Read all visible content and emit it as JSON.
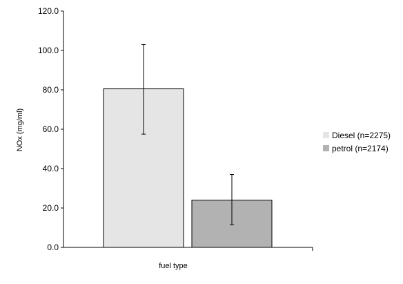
{
  "chart_data": {
    "type": "bar",
    "title": "",
    "xlabel": "fuel type",
    "ylabel": "NOx (mg/ml)",
    "ylim": [
      0,
      120
    ],
    "yticks": [
      "0.0",
      "20.0",
      "40.0",
      "60.0",
      "80.0",
      "100.0",
      "120.0"
    ],
    "grid": false,
    "legend_position": "right",
    "series": [
      {
        "name": "Diesel (n=2275)",
        "value": 80.5,
        "error_low": 57.5,
        "error_high": 103.0,
        "color": "#e5e5e5"
      },
      {
        "name": "petrol (n=2174)",
        "value": 24.0,
        "error_low": 11.5,
        "error_high": 37.0,
        "color": "#b2b2b2"
      }
    ]
  }
}
